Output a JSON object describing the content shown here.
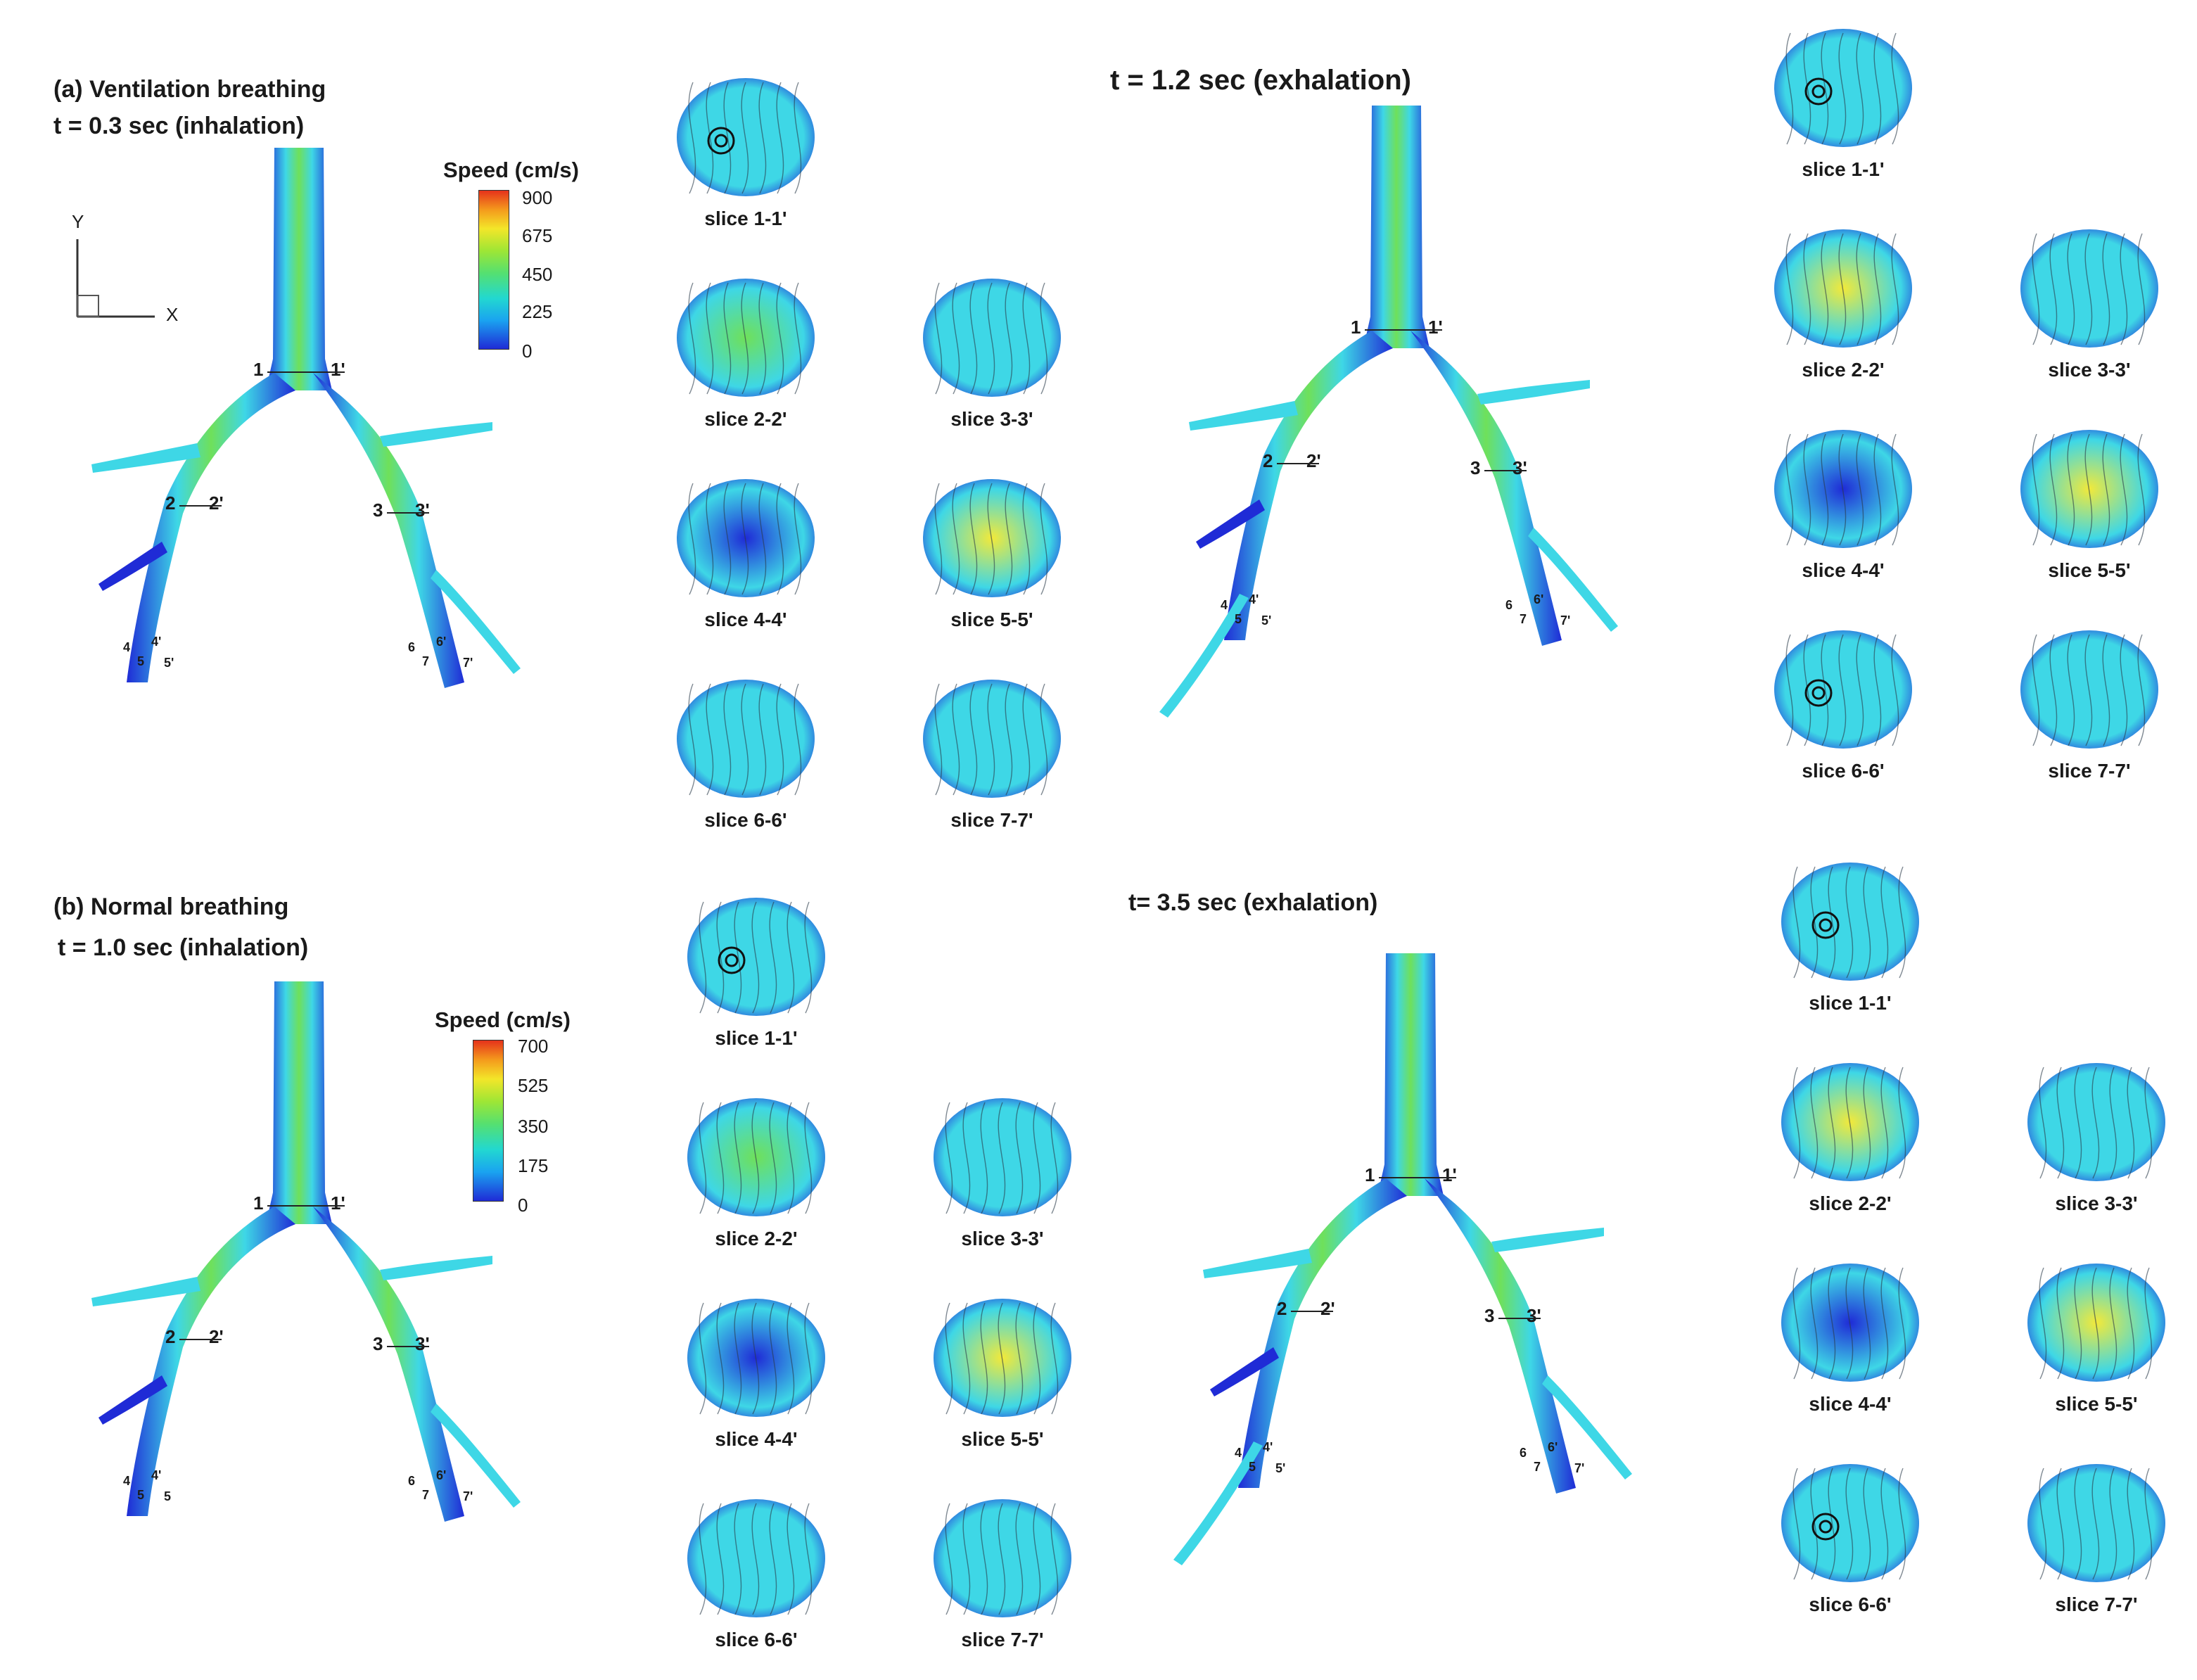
{
  "panel_a": {
    "title": "(a) Ventilation breathing",
    "t_inhale": "t = 0.3 sec (inhalation)",
    "t_exhale": "t = 1.2 sec (exhalation)",
    "colorbar": {
      "title": "Speed (cm/s)",
      "ticks": [
        "900",
        "675",
        "450",
        "225",
        "0"
      ]
    },
    "axes": {
      "y": "Y",
      "x": "X"
    },
    "markers": [
      "1",
      "1'",
      "2",
      "2'",
      "3",
      "3'",
      "4",
      "4'",
      "5",
      "5'",
      "6",
      "6'",
      "7",
      "7'"
    ],
    "slices_inhale": [
      "slice 1-1'",
      "slice 2-2'",
      "slice 3-3'",
      "slice 4-4'",
      "slice 5-5'",
      "slice 6-6'",
      "slice 7-7'"
    ],
    "slices_exhale": [
      "slice 1-1'",
      "slice 2-2'",
      "slice 3-3'",
      "slice 4-4'",
      "slice 5-5'",
      "slice 6-6'",
      "slice 7-7'"
    ]
  },
  "panel_b": {
    "title": "(b) Normal breathing",
    "t_inhale": "t = 1.0 sec (inhalation)",
    "t_exhale": "t= 3.5 sec (exhalation)",
    "colorbar": {
      "title": "Speed (cm/s)",
      "ticks": [
        "700",
        "525",
        "350",
        "175",
        "0"
      ]
    },
    "markers_inhale": [
      "1",
      "1'",
      "2",
      "2'",
      "3",
      "3'",
      "4",
      "4'",
      "5",
      "5",
      "6",
      "6'",
      "7",
      "7'"
    ],
    "markers_exhale": [
      "1",
      "1'",
      "2",
      "2'",
      "3",
      "3'",
      "4",
      "4'",
      "5",
      "5'",
      "6",
      "6'",
      "7",
      "7'"
    ],
    "slices_inhale": [
      "slice 1-1'",
      "slice 2-2'",
      "slice 3-3'",
      "slice 4-4'",
      "slice 5-5'",
      "slice 6-6'",
      "slice 7-7'"
    ],
    "slices_exhale": [
      "slice 1-1'",
      "slice 2-2'",
      "slice 3-3'",
      "slice 4-4'",
      "slice 5-5'",
      "slice 6-6'",
      "slice 7-7'"
    ]
  },
  "colors": {
    "low": "#1f2bd6",
    "cyan": "#3ed7e6",
    "green": "#6fe05a",
    "yellow": "#f2e93a",
    "high": "#e5321b"
  }
}
